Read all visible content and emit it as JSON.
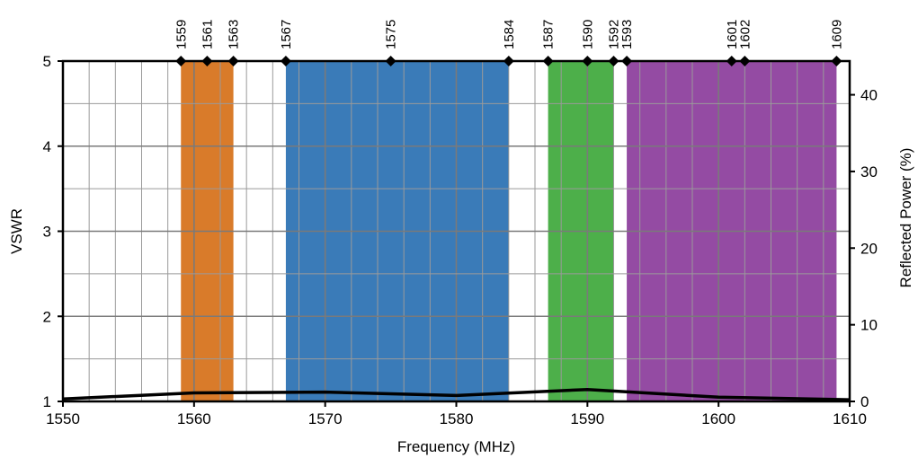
{
  "chart_data": {
    "type": "line",
    "xlabel": "Frequency (MHz)",
    "ylabel": "VSWR",
    "y2label": "Reflected Power (%)",
    "xlim": [
      1550,
      1610
    ],
    "ylim": [
      1,
      5
    ],
    "y2lim": [
      0,
      44.4
    ],
    "x_ticks": [
      1550,
      1560,
      1570,
      1580,
      1590,
      1600,
      1610
    ],
    "y_ticks": [
      1,
      2,
      3,
      4,
      5
    ],
    "y2_ticks": [
      0,
      10,
      20,
      30,
      40
    ],
    "x_minor_step": 2,
    "y_minor_step": 0.5,
    "grid": true,
    "bands": [
      {
        "start": 1559,
        "end": 1563,
        "color": "#d97b2a"
      },
      {
        "start": 1567,
        "end": 1584,
        "color": "#3a7bb8"
      },
      {
        "start": 1587,
        "end": 1592,
        "color": "#4daf4a"
      },
      {
        "start": 1593,
        "end": 1609,
        "color": "#944ba3"
      }
    ],
    "markers": [
      1559,
      1561,
      1563,
      1567,
      1575,
      1584,
      1587,
      1590,
      1592,
      1593,
      1601,
      1602,
      1609
    ],
    "marker_labels": [
      "1559",
      "1561",
      "1563",
      "1567",
      "1575",
      "1584",
      "1587",
      "1590",
      "1592",
      "1593",
      "1601",
      "1602",
      "1609"
    ],
    "series": [
      {
        "color": "#000000",
        "x": [
          1550,
          1560,
          1570,
          1580,
          1590,
          1600,
          1610
        ],
        "y": [
          1.03,
          1.1,
          1.11,
          1.07,
          1.14,
          1.05,
          1.02
        ]
      }
    ]
  }
}
